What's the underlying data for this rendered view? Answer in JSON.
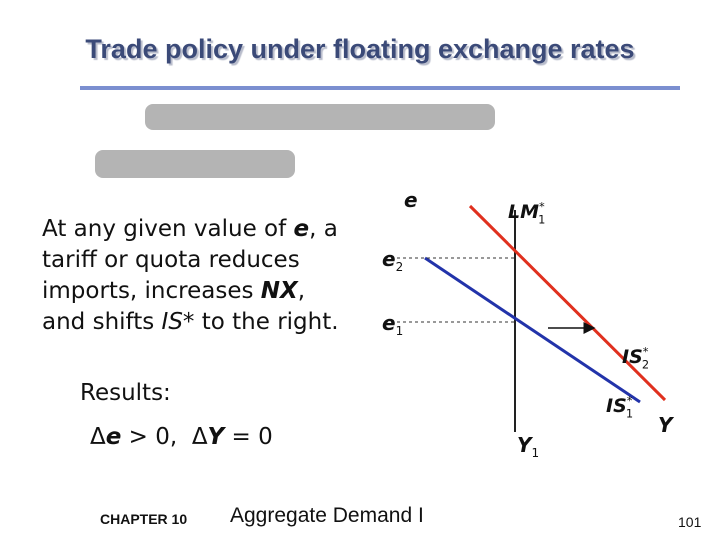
{
  "title": "Trade policy under floating exchange rates",
  "body": {
    "runs": [
      "At any given value of ",
      "e",
      ", a tariff or quota reduces imports, increases ",
      "NX",
      ", and shifts ",
      "IS*",
      " to the right."
    ]
  },
  "results": {
    "heading": "Results:",
    "runs": [
      "Δ",
      "e",
      " > 0,  ",
      "Δ",
      "Y",
      " = 0"
    ]
  },
  "diagram": {
    "y_axis": "e",
    "x_axis": "Y",
    "e2": {
      "main": "e",
      "sub": "2"
    },
    "e1": {
      "main": "e",
      "sub": "1"
    },
    "y1": {
      "main": "Y",
      "sub": "1"
    },
    "lm": {
      "main": "LM",
      "sup": "*",
      "sub": "1"
    },
    "is2": {
      "main": "IS",
      "sup": "*",
      "sub": "2"
    },
    "is1": {
      "main": "IS",
      "sup": "*",
      "sub": "1"
    }
  },
  "footer": {
    "chapter": "CHAPTER 10",
    "subject": "Aggregate Demand I",
    "page": "101"
  }
}
